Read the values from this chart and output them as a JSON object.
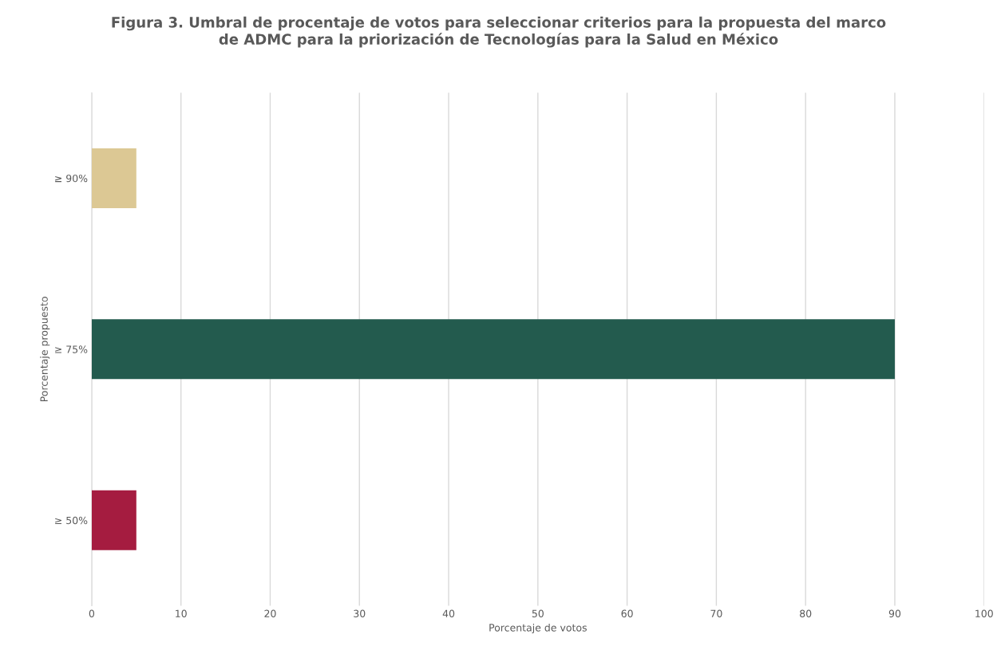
{
  "chart_data": {
    "type": "bar",
    "orientation": "horizontal",
    "title": "Figura 3. Umbral de procentaje de votos para seleccionar criterios para la propuesta del marco\nde ADMC para la priorización de Tecnologías para la Salud en México",
    "categories": [
      "≥ 90%",
      "≥ 75%",
      "≥ 50%"
    ],
    "values": [
      5,
      90,
      5
    ],
    "colors": [
      "#dcc894",
      "#235b4e",
      "#a51c40"
    ],
    "xlim": [
      0,
      100
    ],
    "xticks": [
      0,
      10,
      20,
      30,
      40,
      50,
      60,
      70,
      80,
      90,
      100
    ],
    "xlabel": "Porcentaje de votos",
    "ylabel": "Porcentaje propuesto",
    "grid": "x",
    "legend": false
  }
}
